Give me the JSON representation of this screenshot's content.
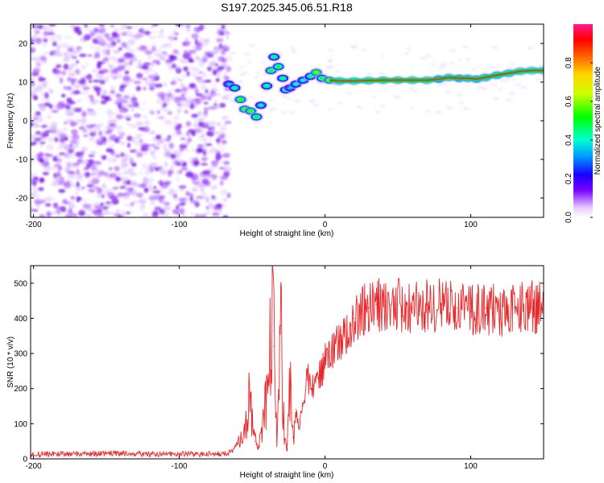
{
  "title": "S197.2025.345.06.51.R18",
  "colors": {
    "snr_line": "#e8292b",
    "spec_bg_points": "#8a2be2",
    "axis": "#000000"
  },
  "chart_data": [
    {
      "type": "heatmap",
      "xlabel": "Height of straight line (km)",
      "ylabel": "Frequency (Hz)",
      "xlim": [
        -202,
        150
      ],
      "ylim": [
        -25,
        25
      ],
      "x_ticks": [
        "-200",
        "-100",
        "0",
        "100"
      ],
      "x_tick_values": [
        -200,
        -100,
        0,
        100
      ],
      "y_ticks": [
        "20",
        "10",
        "0",
        "-10",
        "-20"
      ],
      "y_tick_values": [
        20,
        10,
        0,
        -10,
        -20
      ],
      "noise_region_x": [
        -202,
        -66
      ],
      "ridge": [
        {
          "x": -66,
          "y": 9.5,
          "a": 0.35
        },
        {
          "x": -62,
          "y": 8.5,
          "a": 0.45
        },
        {
          "x": -58,
          "y": 5.5,
          "a": 0.55
        },
        {
          "x": -55,
          "y": 3.0,
          "a": 0.55
        },
        {
          "x": -51,
          "y": 2.5,
          "a": 0.55
        },
        {
          "x": -47,
          "y": 1.0,
          "a": 0.5
        },
        {
          "x": -44,
          "y": 4.0,
          "a": 0.4
        },
        {
          "x": -40,
          "y": 9.0,
          "a": 0.45
        },
        {
          "x": -37,
          "y": 13.0,
          "a": 0.5
        },
        {
          "x": -35,
          "y": 16.5,
          "a": 0.45
        },
        {
          "x": -32,
          "y": 14.0,
          "a": 0.5
        },
        {
          "x": -29,
          "y": 11.0,
          "a": 0.45
        },
        {
          "x": -27,
          "y": 8.0,
          "a": 0.45
        },
        {
          "x": -24,
          "y": 8.5,
          "a": 0.35
        },
        {
          "x": -20,
          "y": 9.5,
          "a": 0.4
        },
        {
          "x": -15,
          "y": 10.5,
          "a": 0.4
        },
        {
          "x": -10,
          "y": 11.5,
          "a": 0.45
        },
        {
          "x": -6,
          "y": 12.5,
          "a": 0.6
        },
        {
          "x": -2,
          "y": 11.0,
          "a": 0.5
        },
        {
          "x": 3,
          "y": 10.5,
          "a": 0.6
        },
        {
          "x": 10,
          "y": 10.3,
          "a": 0.75
        },
        {
          "x": 20,
          "y": 10.3,
          "a": 0.8
        },
        {
          "x": 30,
          "y": 10.4,
          "a": 0.9
        },
        {
          "x": 40,
          "y": 10.5,
          "a": 0.95
        },
        {
          "x": 50,
          "y": 10.5,
          "a": 0.95
        },
        {
          "x": 60,
          "y": 10.5,
          "a": 0.95
        },
        {
          "x": 70,
          "y": 10.5,
          "a": 0.9
        },
        {
          "x": 78,
          "y": 10.8,
          "a": 0.6
        },
        {
          "x": 85,
          "y": 11.2,
          "a": 0.75
        },
        {
          "x": 92,
          "y": 11.0,
          "a": 0.6
        },
        {
          "x": 98,
          "y": 11.0,
          "a": 0.7
        },
        {
          "x": 104,
          "y": 10.8,
          "a": 0.65
        },
        {
          "x": 110,
          "y": 11.2,
          "a": 0.7
        },
        {
          "x": 118,
          "y": 11.8,
          "a": 0.7
        },
        {
          "x": 126,
          "y": 12.3,
          "a": 0.75
        },
        {
          "x": 134,
          "y": 12.8,
          "a": 0.85
        },
        {
          "x": 142,
          "y": 13.0,
          "a": 0.8
        },
        {
          "x": 150,
          "y": 13.0,
          "a": 0.8
        }
      ]
    },
    {
      "type": "line",
      "xlabel": "Height of straight line (km)",
      "ylabel": "SNR (10 * v/v)",
      "xlim": [
        -202,
        150
      ],
      "ylim": [
        0,
        550
      ],
      "x_ticks": [
        "-200",
        "-100",
        "0",
        "100"
      ],
      "x_tick_values": [
        -200,
        -100,
        0,
        100
      ],
      "y_ticks": [
        "500",
        "400",
        "300",
        "200",
        "100",
        "0"
      ],
      "y_tick_values": [
        500,
        400,
        300,
        200,
        100,
        0
      ],
      "series": [
        {
          "x": [
            -202,
            -190,
            -180,
            -170,
            -160,
            -150,
            -140,
            -130,
            -120,
            -110,
            -100,
            -90,
            -80,
            -70,
            -65,
            -62,
            -58,
            -54,
            -52,
            -48,
            -46,
            -43,
            -40,
            -38,
            -36,
            -35,
            -34,
            -33,
            -32,
            -30,
            -28,
            -26,
            -24,
            -22,
            -20,
            -18,
            -15,
            -12,
            -10,
            -8,
            -5,
            -2,
            0,
            3,
            6,
            10,
            14,
            18,
            20,
            25,
            30,
            35,
            40,
            45,
            50,
            60,
            70,
            80,
            90,
            100,
            110,
            120,
            130,
            140,
            150
          ],
          "y": [
            12,
            14,
            13,
            15,
            14,
            16,
            15,
            14,
            13,
            14,
            15,
            13,
            14,
            15,
            18,
            30,
            60,
            110,
            180,
            50,
            30,
            80,
            200,
            260,
            540,
            320,
            120,
            60,
            160,
            380,
            60,
            40,
            220,
            60,
            140,
            90,
            150,
            240,
            200,
            210,
            230,
            250,
            280,
            290,
            320,
            330,
            360,
            380,
            400,
            420,
            430,
            440,
            440,
            440,
            440,
            430,
            440,
            440,
            430,
            420,
            430,
            420,
            430,
            430,
            440
          ]
        }
      ]
    }
  ],
  "colorbar": {
    "label": "Normalized spectral amplitude",
    "ticks": [
      "0.8",
      "0.6",
      "0.4",
      "0.2",
      "0.0"
    ],
    "tick_values": [
      0.8,
      0.6,
      0.4,
      0.2,
      0.0
    ]
  }
}
